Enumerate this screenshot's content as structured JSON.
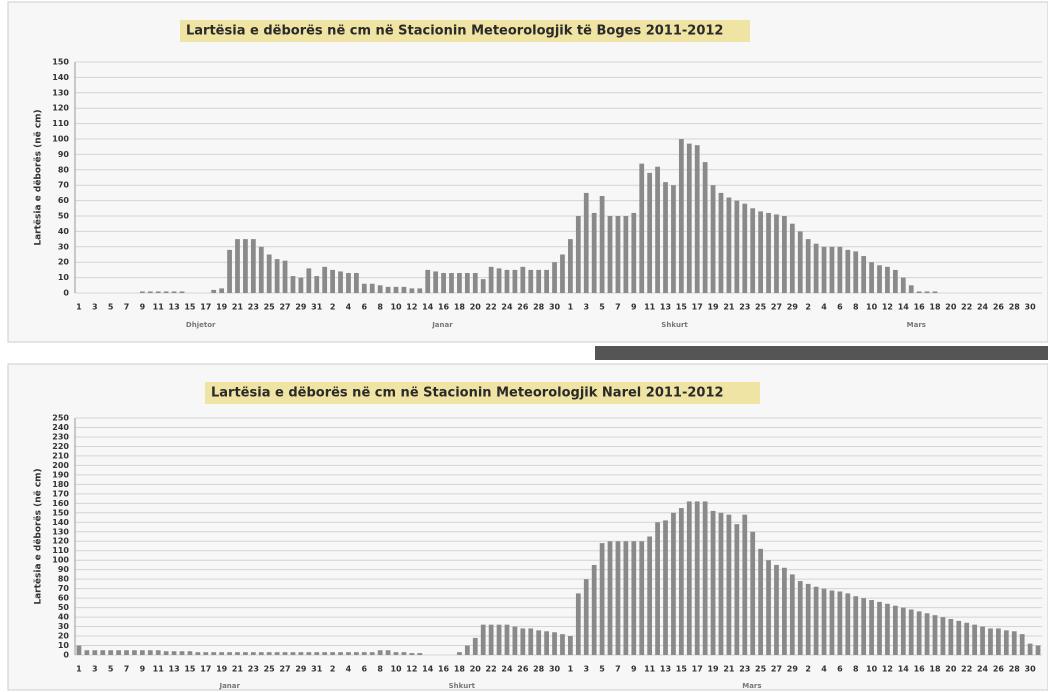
{
  "chart_data": [
    {
      "type": "bar",
      "title": "Lartësia e dëborës në cm në Stacionin Meteorologjik të Boges   2011-2012",
      "y_label": "Lartësia e dëborës (në cm)",
      "color": "#8a8a8a",
      "grid": true,
      "categories": [
        "1",
        null,
        "3",
        null,
        "5",
        null,
        "7",
        null,
        "9",
        null,
        "11",
        null,
        "13",
        null,
        "15",
        null,
        "17",
        null,
        "19",
        null,
        "21",
        null,
        "23",
        null,
        "25",
        null,
        "27",
        null,
        "29",
        null,
        "31",
        null,
        "2",
        null,
        "4",
        null,
        "6",
        null,
        "8",
        null,
        "10",
        null,
        "12",
        null,
        "14",
        null,
        "16",
        null,
        "18",
        null,
        "20",
        null,
        "22",
        null,
        "24",
        null,
        "26",
        null,
        "28",
        null,
        "30",
        null,
        "1",
        null,
        "3",
        null,
        "5",
        null,
        "7",
        null,
        "9",
        null,
        "11",
        null,
        "13",
        null,
        "15",
        null,
        "17",
        null,
        "19",
        null,
        "21",
        null,
        "23",
        null,
        "25",
        null,
        "27",
        null,
        "29",
        null,
        "2",
        null,
        "4",
        null,
        "6",
        null,
        "8",
        null,
        "10",
        null,
        "12",
        null,
        "14",
        null,
        "16",
        null,
        "18",
        null,
        "20",
        null,
        "22",
        null,
        "24",
        null,
        "26",
        null,
        "28",
        null,
        "30",
        null
      ],
      "groups": [
        "Dhjetor",
        "Janar",
        "Shkurt",
        "Mars"
      ],
      "values": [
        0,
        0,
        0,
        0,
        0,
        0,
        0,
        0,
        1,
        1,
        1,
        1,
        1,
        1,
        0,
        0,
        0,
        2,
        3,
        28,
        35,
        35,
        35,
        30,
        25,
        22,
        21,
        11,
        10,
        16,
        11,
        17,
        15,
        14,
        13,
        13,
        6,
        6,
        5,
        4,
        4,
        4,
        3,
        3,
        15,
        14,
        13,
        13,
        13,
        13,
        13,
        9,
        17,
        16,
        15,
        15,
        17,
        15,
        15,
        15,
        20,
        25,
        35,
        50,
        65,
        52,
        63,
        50,
        50,
        50,
        52,
        84,
        78,
        82,
        72,
        70,
        100,
        97,
        96,
        85,
        70,
        65,
        62,
        60,
        58,
        55,
        53,
        52,
        51,
        50,
        45,
        40,
        35,
        32,
        30,
        30,
        30,
        28,
        27,
        24,
        20,
        18,
        17,
        15,
        10,
        5,
        1,
        1,
        1,
        0,
        0,
        0,
        0,
        0,
        0,
        0,
        0,
        0,
        0,
        0,
        0,
        0
      ],
      "ylim": [
        0,
        150
      ],
      "yticks": [
        0,
        10,
        20,
        30,
        40,
        50,
        60,
        70,
        80,
        90,
        100,
        110,
        120,
        130,
        140,
        150
      ]
    },
    {
      "type": "bar",
      "title": "Lartësia e dëborës në cm në Stacionin Meteorologjik  Narel    2011-2012",
      "y_label": "Lartësia e dëborës (në cm)",
      "color": "#8a8a8a",
      "grid": true,
      "categories": [
        "1",
        null,
        "3",
        null,
        "5",
        null,
        "7",
        null,
        "9",
        null,
        "11",
        null,
        "13",
        null,
        "15",
        null,
        "17",
        null,
        "19",
        null,
        "21",
        null,
        "23",
        null,
        "25",
        null,
        "27",
        null,
        "29",
        null,
        "31",
        null,
        "2",
        null,
        "4",
        null,
        "6",
        null,
        "8",
        null,
        "10",
        null,
        "12",
        null,
        "14",
        null,
        "16",
        null,
        "18",
        null,
        "20",
        null,
        "22",
        null,
        "24",
        null,
        "26",
        null,
        "28",
        null,
        "30",
        null,
        "1",
        null,
        "3",
        null,
        "5",
        null,
        "7",
        null,
        "9",
        null,
        "11",
        null,
        "13",
        null,
        "15",
        null,
        "17",
        null,
        "19",
        null,
        "21",
        null,
        "23",
        null,
        "25",
        null,
        "27",
        null,
        "29",
        null,
        "2",
        null,
        "4",
        null,
        "6",
        null,
        "8",
        null,
        "10",
        null,
        "12",
        null,
        "14",
        null,
        "16",
        null,
        "18",
        null,
        "20",
        null,
        "22",
        null,
        "24",
        null,
        "26",
        null,
        "28",
        null,
        "30",
        null
      ],
      "groups": [
        "Janar",
        "Shkurt",
        "Mars"
      ],
      "values": [
        10,
        5,
        5,
        5,
        5,
        5,
        5,
        5,
        5,
        5,
        5,
        4,
        4,
        4,
        4,
        3,
        3,
        3,
        3,
        3,
        3,
        3,
        3,
        3,
        3,
        3,
        3,
        3,
        3,
        3,
        3,
        3,
        3,
        3,
        3,
        3,
        3,
        3,
        5,
        5,
        3,
        3,
        2,
        2,
        0,
        0,
        0,
        0,
        3,
        10,
        18,
        32,
        32,
        32,
        32,
        30,
        28,
        28,
        26,
        25,
        24,
        22,
        20,
        65,
        80,
        95,
        118,
        120,
        120,
        120,
        120,
        120,
        125,
        140,
        142,
        150,
        155,
        162,
        162,
        162,
        152,
        150,
        148,
        138,
        148,
        130,
        112,
        100,
        95,
        92,
        85,
        78,
        75,
        72,
        70,
        68,
        67,
        65,
        62,
        60,
        58,
        56,
        54,
        52,
        50,
        48,
        46,
        44,
        42,
        40,
        38,
        36,
        34,
        32,
        30,
        28,
        28,
        26,
        25,
        22,
        12,
        10
      ],
      "ylim": [
        0,
        250
      ],
      "yticks": [
        0,
        10,
        20,
        30,
        40,
        50,
        60,
        70,
        80,
        90,
        100,
        110,
        120,
        130,
        140,
        150,
        160,
        170,
        180,
        190,
        200,
        210,
        220,
        230,
        240,
        250
      ]
    }
  ]
}
